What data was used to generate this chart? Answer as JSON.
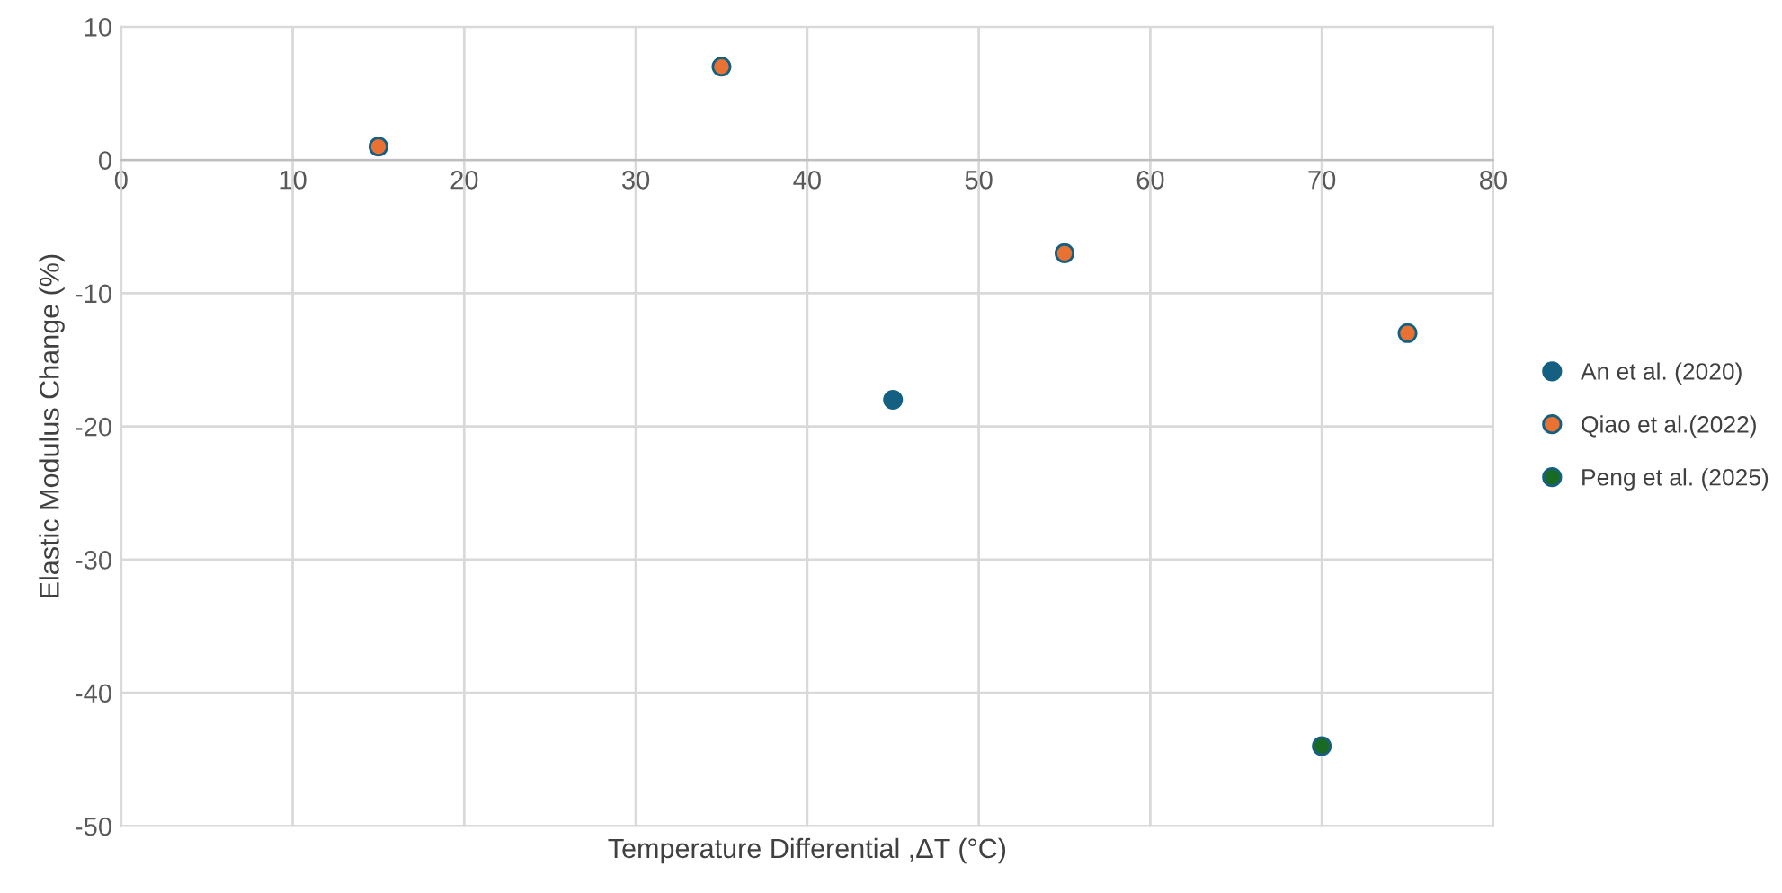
{
  "chart_data": {
    "type": "scatter",
    "xlabel": "Temperature Differential ,ΔT (°C)",
    "ylabel": "Elastic Modulus Change (%)",
    "xlim": [
      0,
      80
    ],
    "xticks": [
      0,
      10,
      20,
      30,
      40,
      50,
      60,
      70,
      80
    ],
    "ylim": [
      -50,
      10
    ],
    "yticks": [
      -50,
      -40,
      -30,
      -20,
      -10,
      0,
      10
    ],
    "grid": true,
    "legend": "right",
    "marker": "circle",
    "series": [
      {
        "name": "An et al. (2020)",
        "color": "#156082",
        "x": [
          45
        ],
        "values": [
          -18
        ]
      },
      {
        "name": "Qiao et al.(2022)",
        "color": "#e97132",
        "x": [
          15,
          35,
          55,
          75
        ],
        "values": [
          1,
          7,
          -7,
          -13
        ]
      },
      {
        "name": "Peng et al. (2025)",
        "color": "#196b24",
        "x": [
          70
        ],
        "values": [
          -44
        ]
      }
    ]
  }
}
